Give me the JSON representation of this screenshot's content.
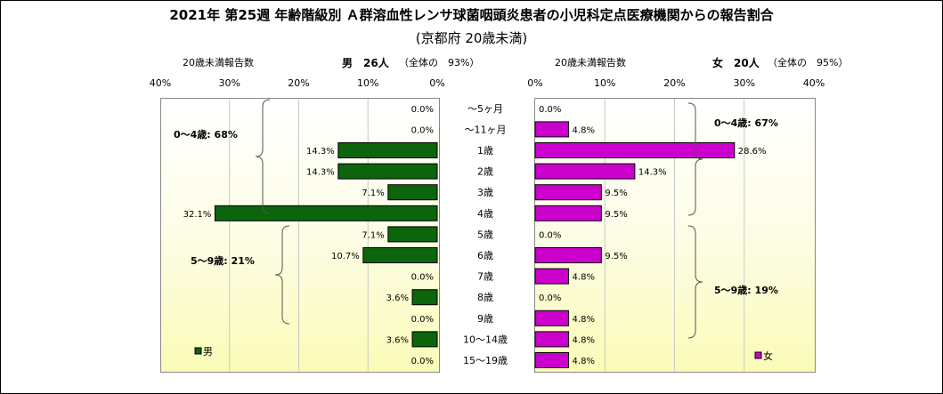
{
  "title": "2021年 第25週 年齢階級別 Ａ群溶血性レンサ球菌咽頭炎患者の小児科定点医療機関からの報告割合",
  "subtitle": "(京都府 20歳未満)",
  "left_header": {
    "caption": "20歳未満報告数",
    "sex_count": "男　26人",
    "share": "（全体の　93%）"
  },
  "right_header": {
    "caption": "20歳未満報告数",
    "sex_count": "女　20人",
    "share": "（全体の　95%）"
  },
  "chart_data": [
    {
      "type": "bar",
      "orientation": "horizontal",
      "direction": "right-to-left",
      "series": [
        {
          "name": "男",
          "values": [
            0.0,
            0.0,
            14.3,
            14.3,
            7.1,
            32.1,
            7.1,
            10.7,
            0.0,
            3.6,
            0.0,
            3.6,
            0.0
          ]
        }
      ],
      "categories": [
        "～5ヶ月",
        "～11ヶ月",
        "1歳",
        "2歳",
        "3歳",
        "4歳",
        "5歳",
        "6歳",
        "7歳",
        "8歳",
        "9歳",
        "10～14歳",
        "15～19歳"
      ],
      "value_labels": [
        "0.0%",
        "0.0%",
        "14.3%",
        "14.3%",
        "7.1%",
        "32.1%",
        "7.1%",
        "10.7%",
        "0.0%",
        "3.6%",
        "0.0%",
        "3.6%",
        "0.0%"
      ],
      "xlim": [
        0,
        40
      ],
      "ticks": [
        "40%",
        "30%",
        "20%",
        "10%",
        "0%"
      ],
      "group_labels": [
        "0～4歳: 68%",
        "5～9歳: 21%"
      ],
      "legend": "男",
      "color": "#0c640c"
    },
    {
      "type": "bar",
      "orientation": "horizontal",
      "direction": "left-to-right",
      "series": [
        {
          "name": "女",
          "values": [
            0.0,
            4.8,
            28.6,
            14.3,
            9.5,
            9.5,
            0.0,
            9.5,
            4.8,
            0.0,
            4.8,
            4.8,
            4.8
          ]
        }
      ],
      "categories": [
        "～5ヶ月",
        "～11ヶ月",
        "1歳",
        "2歳",
        "3歳",
        "4歳",
        "5歳",
        "6歳",
        "7歳",
        "8歳",
        "9歳",
        "10～14歳",
        "15～19歳"
      ],
      "value_labels": [
        "0.0%",
        "4.8%",
        "28.6%",
        "14.3%",
        "9.5%",
        "9.5%",
        "0.0%",
        "9.5%",
        "4.8%",
        "0.0%",
        "4.8%",
        "4.8%",
        "4.8%"
      ],
      "xlim": [
        0,
        40
      ],
      "ticks": [
        "0%",
        "10%",
        "20%",
        "30%",
        "40%"
      ],
      "group_labels": [
        "0～4歳: 67%",
        "5～9歳: 19%"
      ],
      "legend": "女",
      "color": "#cc00cc"
    }
  ]
}
